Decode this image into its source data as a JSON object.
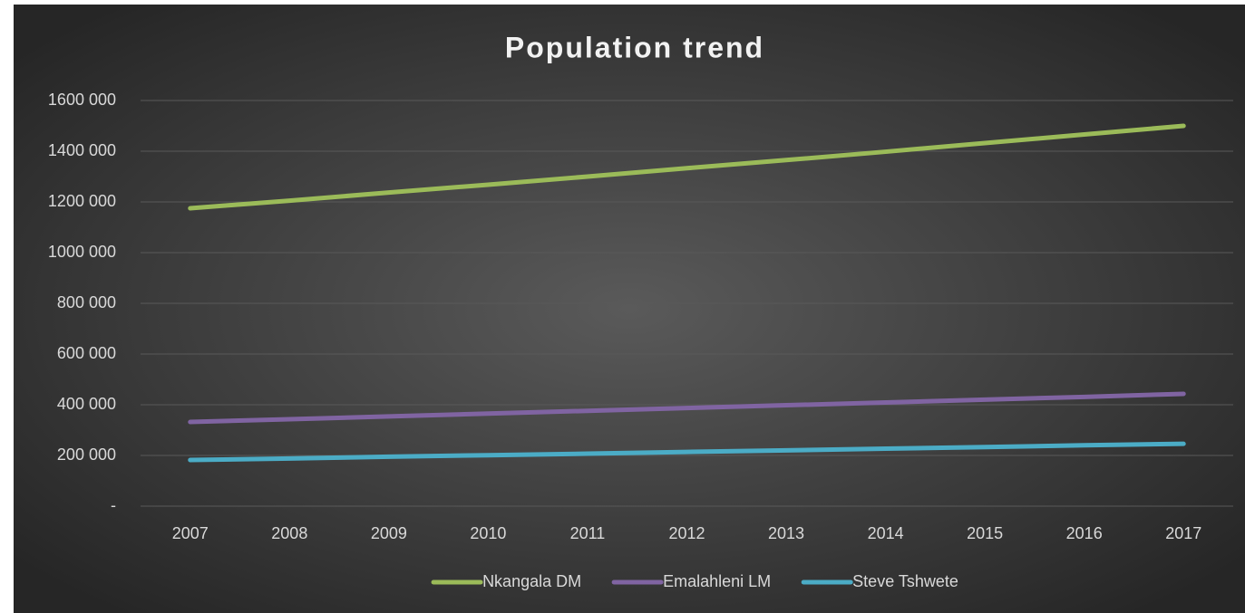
{
  "chart_data": {
    "type": "line",
    "title": "Population trend",
    "categories": [
      "2007",
      "2008",
      "2009",
      "2010",
      "2011",
      "2012",
      "2013",
      "2014",
      "2015",
      "2016",
      "2017"
    ],
    "series": [
      {
        "name": "Nkangala DM",
        "color": "#9bbb59",
        "values": [
          1175000,
          1205000,
          1237000,
          1268000,
          1300000,
          1333000,
          1365000,
          1398000,
          1432000,
          1466000,
          1500000
        ]
      },
      {
        "name": "Emalahleni LM",
        "color": "#8064a2",
        "values": [
          332000,
          343000,
          354000,
          365000,
          376000,
          387000,
          398000,
          409000,
          420000,
          431000,
          443000
        ]
      },
      {
        "name": "Steve Tshwete",
        "color": "#4bacc6",
        "values": [
          182000,
          188000,
          195000,
          201000,
          207000,
          214000,
          220000,
          227000,
          233000,
          240000,
          246000
        ]
      }
    ],
    "ylim": [
      0,
      1600000
    ],
    "yticks": [
      {
        "value": 0,
        "label": "-"
      },
      {
        "value": 200000,
        "label": "200 000"
      },
      {
        "value": 400000,
        "label": "400 000"
      },
      {
        "value": 600000,
        "label": "600 000"
      },
      {
        "value": 800000,
        "label": "800 000"
      },
      {
        "value": 1000000,
        "label": "1000 000"
      },
      {
        "value": 1200000,
        "label": "1200 000"
      },
      {
        "value": 1400000,
        "label": "1400 000"
      },
      {
        "value": 1600000,
        "label": "1600 000"
      }
    ],
    "grid": true,
    "legend": "bottom"
  }
}
